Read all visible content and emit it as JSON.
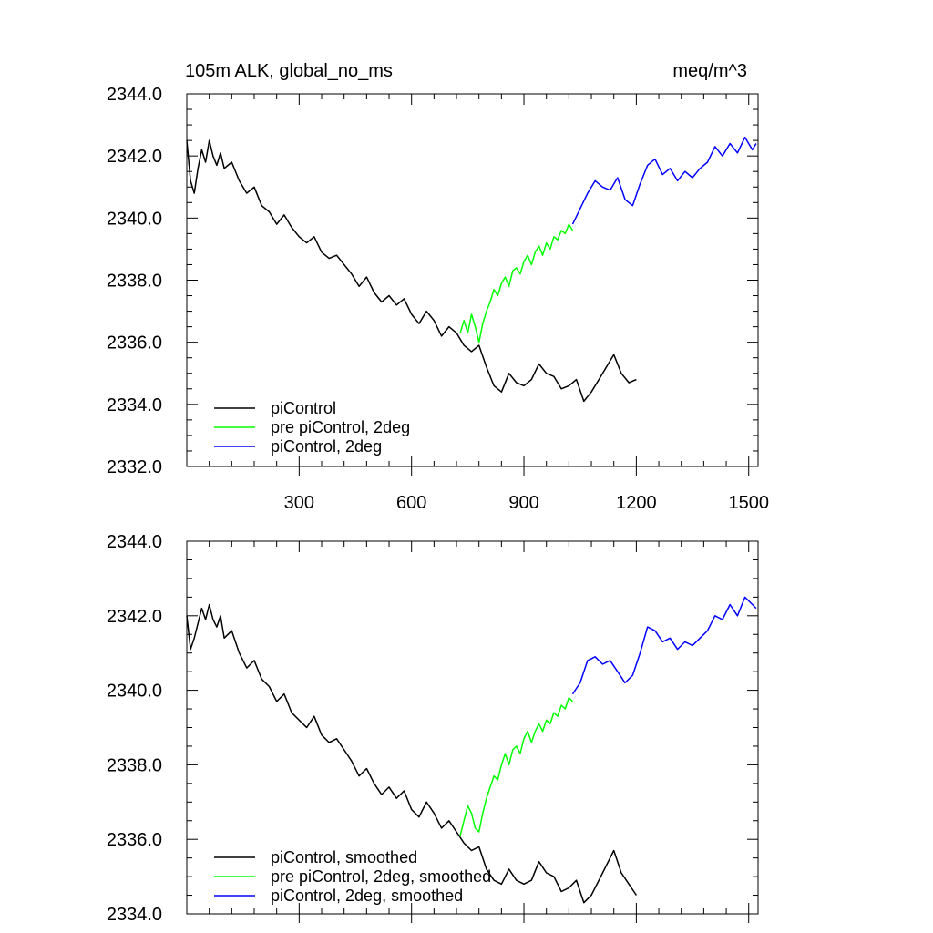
{
  "figure": {
    "title_left": "105m ALK, global_no_ms",
    "title_right": "meq/m^3"
  },
  "chart_data": [
    {
      "type": "line",
      "x_ticks": [
        300,
        600,
        900,
        1200,
        1500
      ],
      "x_tick_labels": [
        "300",
        "600",
        "900",
        "1200",
        "1500"
      ],
      "xlim": [
        0,
        1525
      ],
      "ylim": [
        2332,
        2344
      ],
      "y_ticks": [
        2332,
        2334,
        2336,
        2338,
        2340,
        2342,
        2344
      ],
      "y_tick_labels": [
        "2332.0",
        "2334.0",
        "2336.0",
        "2338.0",
        "2340.0",
        "2342.0",
        "2344.0"
      ],
      "grid": false,
      "legend": "bottom-left",
      "series": [
        {
          "name": "piControl",
          "color": "#000000",
          "x": [
            0,
            10,
            20,
            30,
            40,
            50,
            60,
            70,
            80,
            90,
            100,
            120,
            140,
            160,
            180,
            200,
            220,
            240,
            260,
            280,
            300,
            320,
            340,
            360,
            380,
            400,
            420,
            440,
            460,
            480,
            500,
            520,
            540,
            560,
            580,
            600,
            620,
            640,
            660,
            680,
            700,
            720,
            740,
            760,
            780,
            800,
            820,
            840,
            860,
            880,
            900,
            920,
            940,
            960,
            980,
            1000,
            1020,
            1040,
            1060,
            1080,
            1100,
            1120,
            1140,
            1160,
            1180,
            1200
          ],
          "y": [
            2342.5,
            2341.2,
            2340.8,
            2341.6,
            2342.2,
            2341.8,
            2342.5,
            2342.0,
            2341.7,
            2342.1,
            2341.6,
            2341.8,
            2341.2,
            2340.8,
            2341.0,
            2340.4,
            2340.2,
            2339.8,
            2340.1,
            2339.7,
            2339.4,
            2339.2,
            2339.4,
            2338.9,
            2338.7,
            2338.8,
            2338.5,
            2338.2,
            2337.8,
            2338.1,
            2337.6,
            2337.3,
            2337.5,
            2337.2,
            2337.4,
            2336.9,
            2336.6,
            2337.0,
            2336.7,
            2336.2,
            2336.5,
            2336.3,
            2335.9,
            2335.7,
            2335.9,
            2335.2,
            2334.6,
            2334.4,
            2335.0,
            2334.7,
            2334.6,
            2334.8,
            2335.3,
            2335.0,
            2334.9,
            2334.5,
            2334.6,
            2334.8,
            2334.1,
            2334.4,
            2334.8,
            2335.2,
            2335.6,
            2335.0,
            2334.7,
            2334.8
          ]
        },
        {
          "name": "pre piControl, 2deg",
          "color": "#00ff00",
          "x": [
            730,
            740,
            750,
            760,
            770,
            780,
            790,
            800,
            810,
            820,
            830,
            840,
            850,
            860,
            870,
            880,
            890,
            900,
            910,
            920,
            930,
            940,
            950,
            960,
            970,
            980,
            990,
            1000,
            1010,
            1020,
            1030
          ],
          "y": [
            2336.3,
            2336.7,
            2336.3,
            2336.9,
            2336.5,
            2336.0,
            2336.6,
            2337.0,
            2337.3,
            2337.7,
            2337.5,
            2337.9,
            2338.1,
            2337.8,
            2338.3,
            2338.4,
            2338.2,
            2338.6,
            2338.8,
            2338.5,
            2338.9,
            2339.1,
            2338.8,
            2339.2,
            2339.0,
            2339.4,
            2339.3,
            2339.6,
            2339.5,
            2339.8,
            2339.6
          ]
        },
        {
          "name": "piControl, 2deg",
          "color": "#0000ff",
          "x": [
            1030,
            1050,
            1070,
            1090,
            1110,
            1130,
            1150,
            1170,
            1190,
            1210,
            1230,
            1250,
            1270,
            1290,
            1310,
            1330,
            1350,
            1370,
            1390,
            1410,
            1430,
            1450,
            1470,
            1490,
            1510,
            1520
          ],
          "y": [
            2339.8,
            2340.3,
            2340.8,
            2341.2,
            2341.0,
            2340.9,
            2341.3,
            2340.6,
            2340.4,
            2341.1,
            2341.7,
            2341.9,
            2341.4,
            2341.6,
            2341.2,
            2341.5,
            2341.3,
            2341.6,
            2341.8,
            2342.3,
            2342.0,
            2342.4,
            2342.1,
            2342.6,
            2342.2,
            2342.4
          ]
        }
      ]
    },
    {
      "type": "line",
      "x_ticks": [
        300,
        600,
        900,
        1200,
        1500
      ],
      "x_tick_labels": [],
      "xlim": [
        0,
        1525
      ],
      "ylim": [
        2334,
        2344
      ],
      "y_ticks": [
        2334,
        2336,
        2338,
        2340,
        2342,
        2344
      ],
      "y_tick_labels": [
        "2334.0",
        "2336.0",
        "2338.0",
        "2340.0",
        "2342.0",
        "2344.0"
      ],
      "grid": false,
      "legend": "bottom-left",
      "series": [
        {
          "name": "piControl, smoothed",
          "color": "#000000",
          "x": [
            0,
            10,
            20,
            30,
            40,
            50,
            60,
            70,
            80,
            90,
            100,
            120,
            140,
            160,
            180,
            200,
            220,
            240,
            260,
            280,
            300,
            320,
            340,
            360,
            380,
            400,
            420,
            440,
            460,
            480,
            500,
            520,
            540,
            560,
            580,
            600,
            620,
            640,
            660,
            680,
            700,
            720,
            740,
            760,
            780,
            800,
            820,
            840,
            860,
            880,
            900,
            920,
            940,
            960,
            980,
            1000,
            1020,
            1040,
            1060,
            1080,
            1100,
            1120,
            1140,
            1160,
            1180,
            1200
          ],
          "y": [
            2342.0,
            2341.1,
            2341.4,
            2341.8,
            2342.2,
            2341.9,
            2342.3,
            2341.9,
            2341.7,
            2342.0,
            2341.4,
            2341.6,
            2341.0,
            2340.6,
            2340.8,
            2340.3,
            2340.1,
            2339.7,
            2339.9,
            2339.4,
            2339.2,
            2339.0,
            2339.3,
            2338.8,
            2338.6,
            2338.7,
            2338.4,
            2338.1,
            2337.7,
            2337.9,
            2337.5,
            2337.2,
            2337.4,
            2337.1,
            2337.3,
            2336.8,
            2336.6,
            2337.0,
            2336.7,
            2336.3,
            2336.5,
            2336.2,
            2335.9,
            2335.7,
            2335.8,
            2335.2,
            2334.9,
            2334.8,
            2335.2,
            2334.9,
            2334.8,
            2334.9,
            2335.4,
            2335.1,
            2335.0,
            2334.6,
            2334.7,
            2334.9,
            2334.3,
            2334.5,
            2334.9,
            2335.3,
            2335.7,
            2335.1,
            2334.8,
            2334.5
          ]
        },
        {
          "name": "pre piControl, 2deg, smoothed",
          "color": "#00ff00",
          "x": [
            730,
            740,
            750,
            760,
            770,
            780,
            790,
            800,
            810,
            820,
            830,
            840,
            850,
            860,
            870,
            880,
            890,
            900,
            910,
            920,
            930,
            940,
            950,
            960,
            970,
            980,
            990,
            1000,
            1010,
            1020,
            1030
          ],
          "y": [
            2336.1,
            2336.5,
            2336.9,
            2336.7,
            2336.3,
            2336.2,
            2336.7,
            2337.1,
            2337.4,
            2337.7,
            2337.6,
            2338.0,
            2338.3,
            2338.0,
            2338.4,
            2338.5,
            2338.3,
            2338.7,
            2338.9,
            2338.6,
            2338.9,
            2339.1,
            2338.9,
            2339.2,
            2339.1,
            2339.4,
            2339.3,
            2339.6,
            2339.5,
            2339.8,
            2339.7
          ]
        },
        {
          "name": "piControl, 2deg, smoothed",
          "color": "#0000ff",
          "x": [
            1030,
            1050,
            1070,
            1090,
            1110,
            1130,
            1150,
            1170,
            1190,
            1210,
            1230,
            1250,
            1270,
            1290,
            1310,
            1330,
            1350,
            1370,
            1390,
            1410,
            1430,
            1450,
            1470,
            1490,
            1510,
            1520
          ],
          "y": [
            2339.9,
            2340.2,
            2340.8,
            2340.9,
            2340.7,
            2340.8,
            2340.5,
            2340.2,
            2340.4,
            2341.0,
            2341.7,
            2341.6,
            2341.3,
            2341.4,
            2341.1,
            2341.3,
            2341.2,
            2341.4,
            2341.6,
            2342.0,
            2341.9,
            2342.3,
            2342.0,
            2342.5,
            2342.3,
            2342.2
          ]
        }
      ]
    }
  ]
}
